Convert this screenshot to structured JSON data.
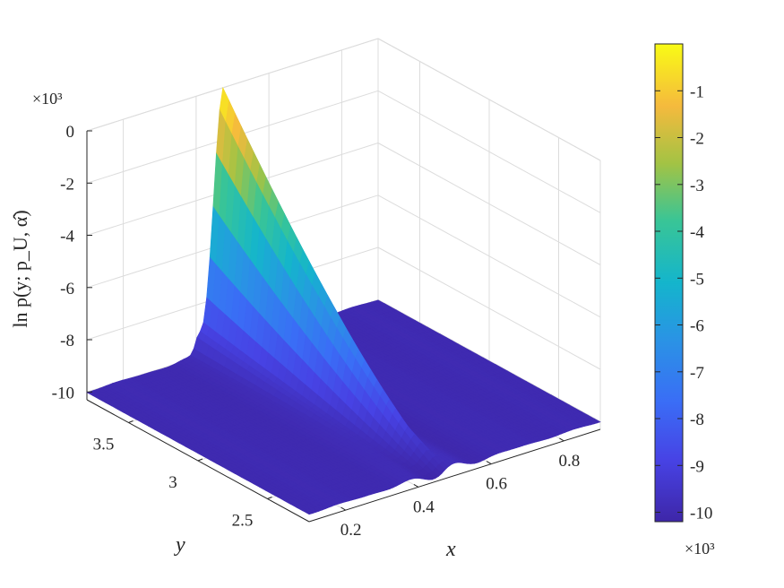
{
  "chart_data": {
    "type": "surface",
    "zlabel": "ln p(y; p_U, α̂)",
    "xlabel": "x",
    "ylabel": "y",
    "x_ticks": [
      "0.2",
      "0.4",
      "0.6",
      "0.8"
    ],
    "x_tick_values": [
      0.2,
      0.4,
      0.6,
      0.8
    ],
    "y_ticks": [
      "2.5",
      "3",
      "3.5"
    ],
    "y_tick_values": [
      2.5,
      3.0,
      3.5
    ],
    "z_ticks": [
      "0",
      "-2",
      "-4",
      "-6",
      "-8",
      "-10"
    ],
    "z_tick_values": [
      0,
      -2,
      -4,
      -6,
      -8,
      -10
    ],
    "z_exponent_label": "×10³",
    "xlim": [
      0.1,
      0.9
    ],
    "ylim": [
      2.2,
      3.8
    ],
    "zlim": [
      -10.3,
      0
    ],
    "colormap": "parula",
    "colorbar": {
      "ticks": [
        "-1",
        "-2",
        "-3",
        "-4",
        "-5",
        "-6",
        "-7",
        "-8",
        "-9",
        "-10"
      ],
      "tick_values": [
        -1,
        -2,
        -3,
        -4,
        -5,
        -6,
        -7,
        -8,
        -9,
        -10
      ],
      "range": [
        -10.2,
        0
      ],
      "exponent_label": "×10³"
    },
    "surface_description": "Sharp ridge near x≈0.45–0.5: value ~0 at high y (3.8) decreasing toward ~-10 at low y (2.2); elsewhere flat at ~-10 with small ripples."
  }
}
